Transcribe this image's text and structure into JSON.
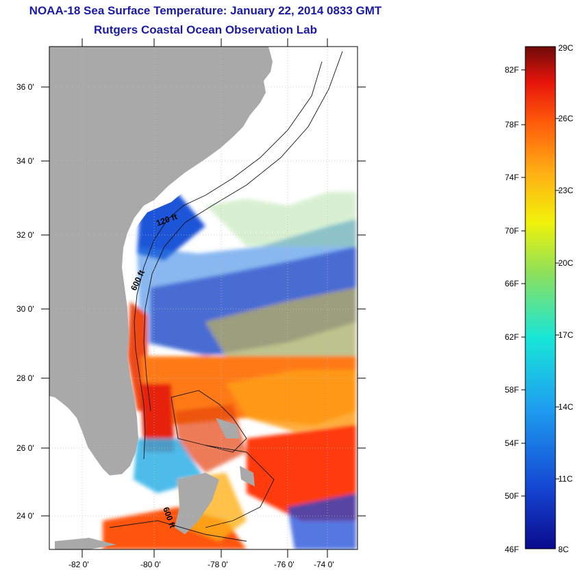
{
  "header": {
    "title": "NOAA-18 Sea Surface Temperature:  January 22, 2014 0833 GMT",
    "subtitle": "Rutgers Coastal Ocean Observation Lab"
  },
  "map": {
    "lat_labels": [
      "36 0'",
      "34 0'",
      "32 0'",
      "30 0'",
      "28 0'",
      "26 0'",
      "24 0'"
    ],
    "lon_labels": [
      "-82 0'",
      "-80 0'",
      "-78 0'",
      "-76 0'",
      "-74 0'"
    ],
    "contour_labels": [
      "120 ft",
      "600 ft",
      "600 ft"
    ],
    "colors": {
      "land": "#a9a9a9",
      "grid": "#bdbdbd"
    }
  },
  "colorbar": {
    "fahrenheit": [
      "82F",
      "78F",
      "74F",
      "70F",
      "66F",
      "62F",
      "58F",
      "54F",
      "50F",
      "46F"
    ],
    "celsius": [
      "29C",
      "26C",
      "23C",
      "20C",
      "17C",
      "14C",
      "11C",
      "8C"
    ],
    "range_c": [
      8,
      29
    ]
  }
}
